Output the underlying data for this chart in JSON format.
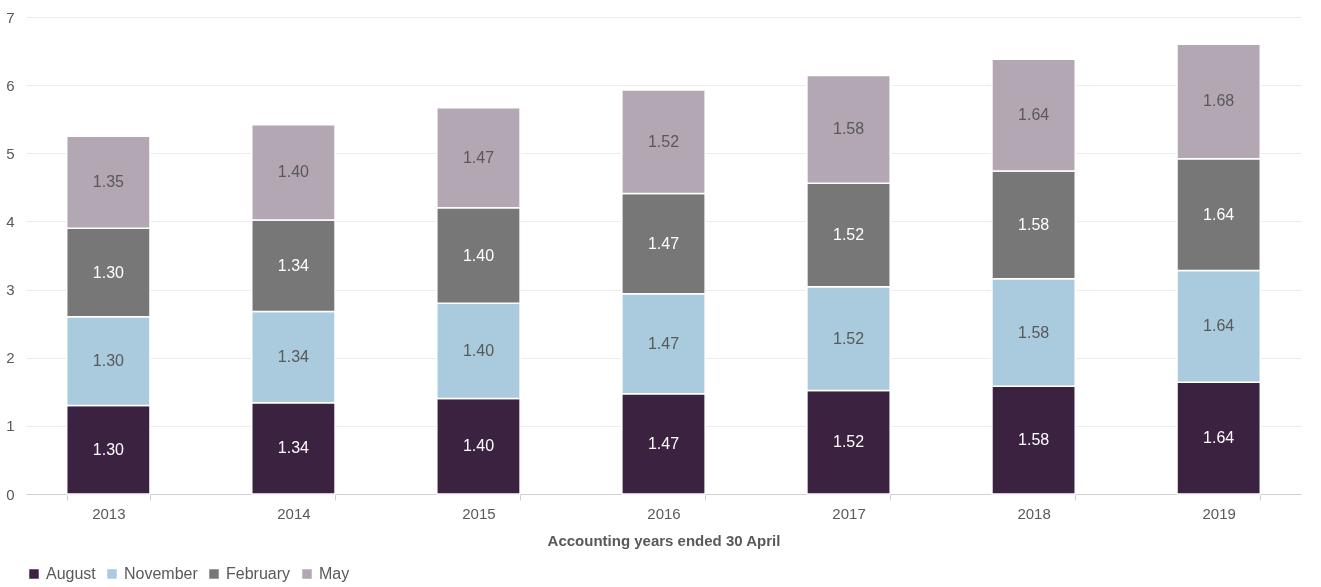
{
  "chart_data": {
    "type": "bar",
    "stacked": true,
    "xlabel": "Accounting years ended 30 April",
    "categories": [
      "2013",
      "2014",
      "2015",
      "2016",
      "2017",
      "2018",
      "2019"
    ],
    "series": [
      {
        "name": "August",
        "color": "#3b2241",
        "values": [
          1.3,
          1.34,
          1.4,
          1.47,
          1.52,
          1.58,
          1.64
        ],
        "value_labels": [
          "1.30",
          "1.34",
          "1.40",
          "1.47",
          "1.52",
          "1.58",
          "1.64"
        ]
      },
      {
        "name": "November",
        "color": "#a9cbdd",
        "values": [
          1.3,
          1.34,
          1.4,
          1.47,
          1.52,
          1.58,
          1.64
        ],
        "value_labels": [
          "1.30",
          "1.34",
          "1.40",
          "1.47",
          "1.52",
          "1.58",
          "1.64"
        ]
      },
      {
        "name": "February",
        "color": "#777777",
        "values": [
          1.3,
          1.34,
          1.4,
          1.47,
          1.52,
          1.58,
          1.64
        ],
        "value_labels": [
          "1.30",
          "1.34",
          "1.40",
          "1.47",
          "1.52",
          "1.58",
          "1.64"
        ]
      },
      {
        "name": "May",
        "color": "#b2a7b3",
        "values": [
          1.35,
          1.4,
          1.47,
          1.52,
          1.58,
          1.64,
          1.68
        ],
        "value_labels": [
          "1.35",
          "1.40",
          "1.47",
          "1.52",
          "1.58",
          "1.64",
          "1.68"
        ]
      }
    ],
    "ylim": [
      0,
      7
    ],
    "yticks": [
      0,
      1,
      2,
      3,
      4,
      5,
      6,
      7
    ],
    "grid": "y",
    "legend": "bottom"
  }
}
